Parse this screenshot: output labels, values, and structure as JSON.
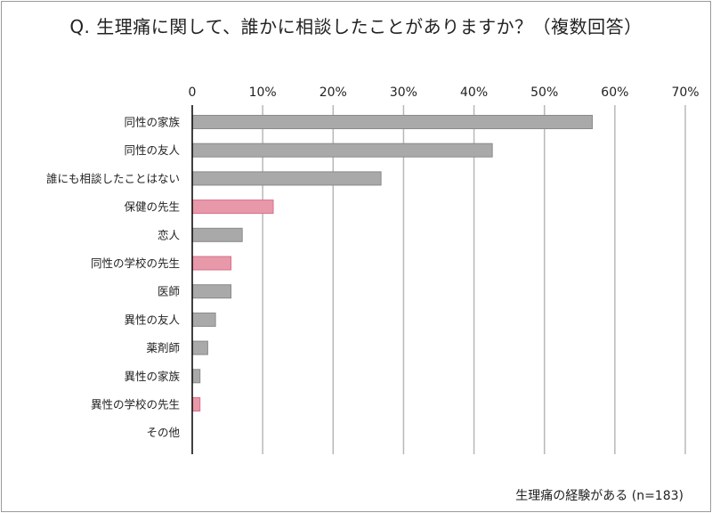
{
  "chart_data": {
    "type": "bar",
    "orientation": "horizontal",
    "title": "Q. 生理痛に関して、誰かに相談したことがありますか？（複数回答）",
    "note": "生理痛の経験がある (n=183)",
    "categories": [
      "同性の家族",
      "同性の友人",
      "誰にも相談したことはない",
      "保健の先生",
      "恋人",
      "同性の学校の先生",
      "医師",
      "異性の友人",
      "薬剤師",
      "異性の家族",
      "異性の学校の先生",
      "その他"
    ],
    "values": [
      56.8,
      42.6,
      26.8,
      11.5,
      7.1,
      5.5,
      5.5,
      3.3,
      2.2,
      1.1,
      1.1,
      0
    ],
    "highlight": [
      false,
      false,
      false,
      true,
      false,
      true,
      false,
      false,
      false,
      false,
      true,
      false
    ],
    "unit": "%",
    "xlim": [
      0,
      70
    ],
    "xticks": [
      0,
      10,
      20,
      30,
      40,
      50,
      60,
      70
    ],
    "xtick_labels": [
      "0",
      "10%",
      "20%",
      "30%",
      "40%",
      "50%",
      "60%",
      "70%"
    ],
    "xlabel": "",
    "ylabel": "",
    "grid": true,
    "colors": {
      "normal": "#a9a9a9",
      "normal_stroke": "#8a8a8a",
      "highlight": "#e899a9",
      "highlight_stroke": "#d9708a",
      "grid": "#b8b8b8",
      "axis": "#000000"
    }
  }
}
